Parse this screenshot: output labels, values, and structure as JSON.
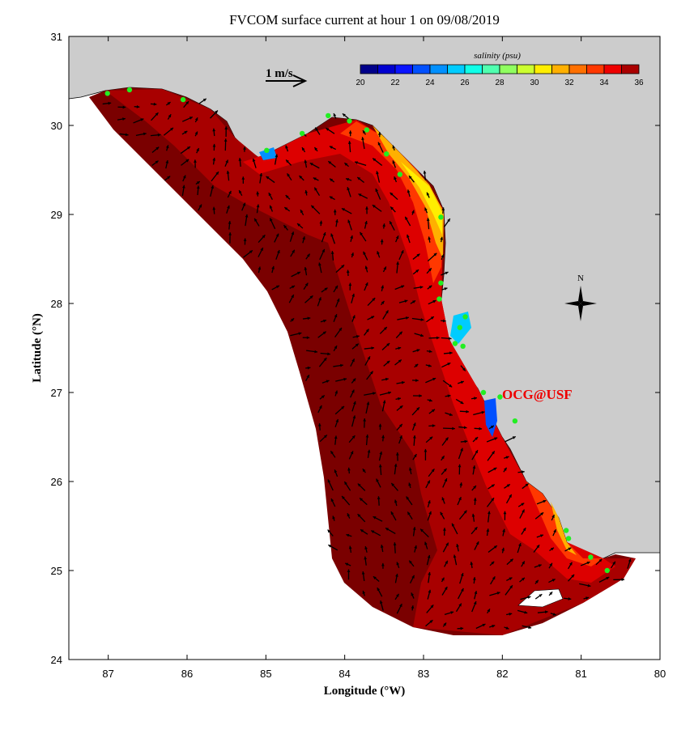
{
  "title": "FVCOM surface current at hour 1 on 09/08/2019",
  "xlabel": "Longitude (°W)",
  "ylabel": "Latitude (°N)",
  "x_ticks": [
    "87",
    "86",
    "85",
    "84",
    "83",
    "82",
    "81",
    "80"
  ],
  "y_ticks": [
    "31",
    "30",
    "29",
    "28",
    "27",
    "26",
    "25",
    "24"
  ],
  "xlim": [
    87.5,
    80
  ],
  "ylim": [
    24,
    31
  ],
  "scale_arrow_label": "1 m/s",
  "colorbar": {
    "title": "salinity (psu)",
    "ticks": [
      "20",
      "22",
      "24",
      "26",
      "28",
      "30",
      "32",
      "34",
      "36"
    ],
    "range": [
      20,
      36
    ],
    "colors": [
      "#00008a",
      "#0000d0",
      "#0a14ff",
      "#0050ff",
      "#0090ff",
      "#00ccff",
      "#10ffe8",
      "#50ffb0",
      "#90ff60",
      "#ccff30",
      "#ffee00",
      "#ffb000",
      "#ff7000",
      "#ff3800",
      "#ee0000",
      "#aa0000"
    ]
  },
  "compass_label": "N",
  "watermark": "OCG@USF",
  "colors": {
    "land": "#cccccc",
    "station": "#22ee22",
    "watermark": "#ee0000"
  },
  "stations": [
    [
      87.01,
      30.36
    ],
    [
      86.73,
      30.4
    ],
    [
      86.05,
      30.29
    ],
    [
      84.99,
      29.72
    ],
    [
      84.54,
      29.91
    ],
    [
      84.21,
      30.11
    ],
    [
      83.94,
      30.05
    ],
    [
      83.72,
      29.95
    ],
    [
      83.47,
      29.68
    ],
    [
      83.3,
      29.45
    ],
    [
      82.78,
      28.97
    ],
    [
      82.78,
      28.23
    ],
    [
      82.8,
      28.05
    ],
    [
      82.47,
      27.85
    ],
    [
      82.54,
      27.73
    ],
    [
      82.6,
      27.55
    ],
    [
      82.5,
      27.52
    ],
    [
      82.24,
      27.0
    ],
    [
      82.03,
      26.95
    ],
    [
      81.84,
      26.68
    ],
    [
      81.19,
      25.45
    ],
    [
      81.16,
      25.36
    ],
    [
      80.88,
      25.15
    ],
    [
      80.67,
      25.0
    ]
  ]
}
